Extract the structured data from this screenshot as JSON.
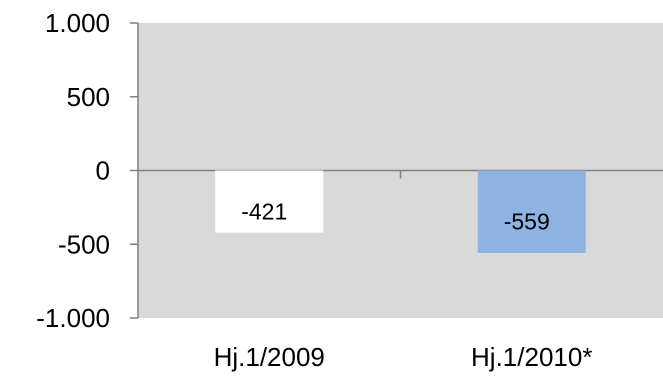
{
  "chart_data": {
    "type": "bar",
    "title": "",
    "xlabel": "",
    "ylabel": "",
    "categories": [
      "Hj.1/2009",
      "Hj.1/2010*"
    ],
    "values": [
      -421,
      -559
    ],
    "data_labels": [
      "-421",
      "-559"
    ],
    "ylim": [
      -1000,
      1000
    ],
    "yticks": [
      1000,
      500,
      0,
      -500,
      -1000
    ],
    "ytick_labels": [
      "1.000",
      "500",
      "0",
      "-500",
      "-1.000"
    ],
    "grid": false,
    "legend": "none",
    "colors": {
      "plot_background": "#d9d9d9",
      "bar_1": "#ffffff",
      "bar_2": "#8db3e2",
      "axis": "#808080"
    }
  }
}
